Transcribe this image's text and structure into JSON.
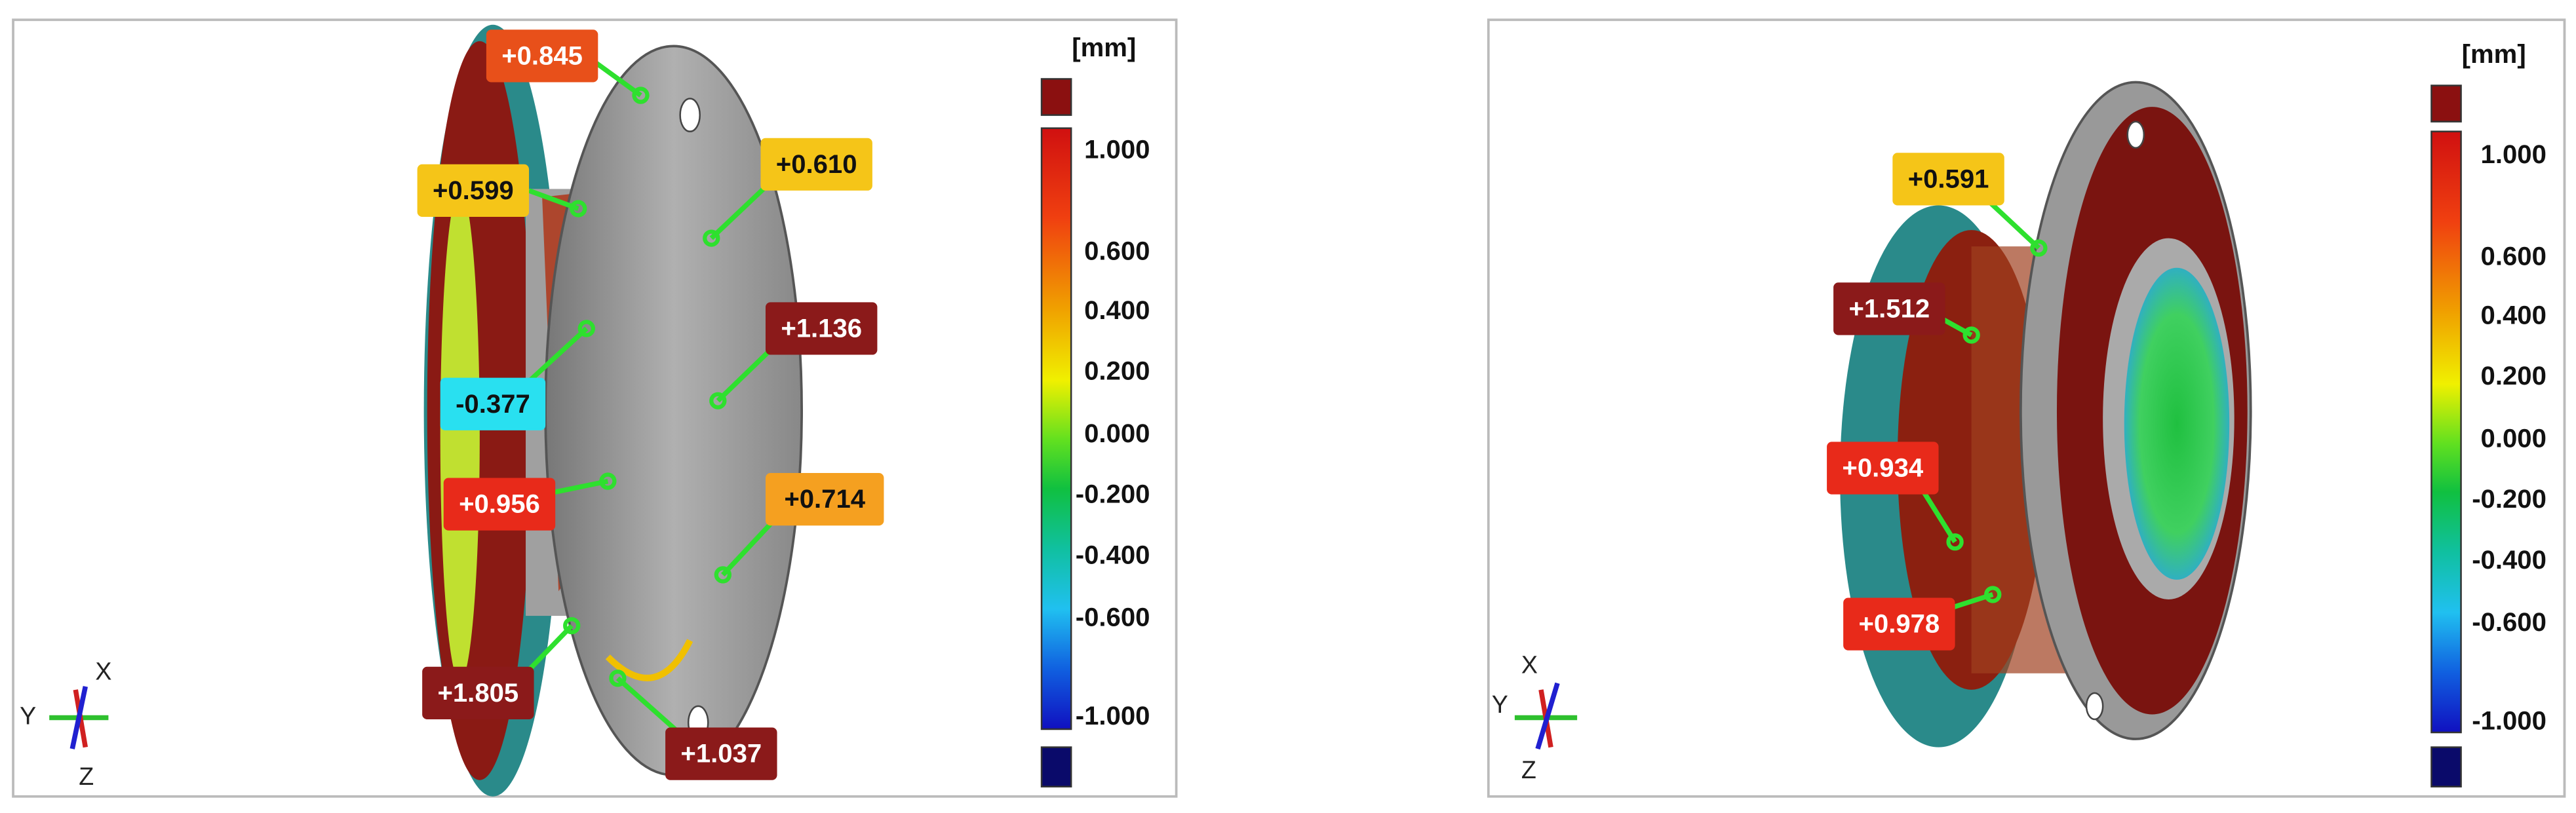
{
  "panels": [
    {
      "unit": "[mm]",
      "scale": [
        "1.000",
        "0.600",
        "0.400",
        "0.200",
        "0.000",
        "-0.200",
        "-0.400",
        "-0.600",
        "-1.000"
      ],
      "axes": [
        "X",
        "Y",
        "Z"
      ],
      "annotations": [
        "+0.845",
        "+0.599",
        "+0.610",
        "+1.136",
        "-0.377",
        "+0.956",
        "+0.714",
        "+1.805",
        "+1.037"
      ]
    },
    {
      "unit": "[mm]",
      "scale": [
        "1.000",
        "0.600",
        "0.400",
        "0.200",
        "0.000",
        "-0.200",
        "-0.400",
        "-0.600",
        "-1.000"
      ],
      "axes": [
        "X",
        "Y",
        "Z"
      ],
      "annotations": [
        "+0.591",
        "+1.512",
        "+0.934",
        "+0.978"
      ]
    }
  ]
}
